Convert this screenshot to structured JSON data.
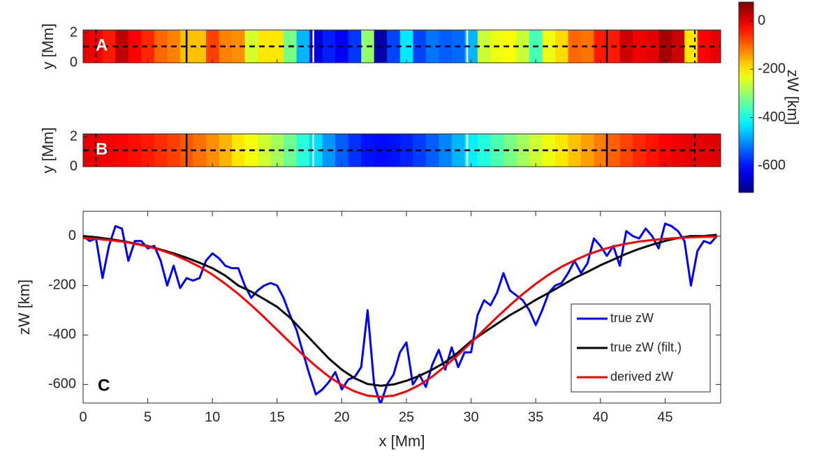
{
  "chart_data": [
    {
      "type": "heatmap",
      "label": "A",
      "ylabel": "y [Mm]",
      "ylim": [
        0,
        2.2
      ],
      "yticks": [
        0,
        2
      ],
      "x": [
        0,
        1,
        2,
        3,
        4,
        5,
        6,
        7,
        8,
        9,
        10,
        11,
        12,
        13,
        14,
        15,
        16,
        17,
        18,
        19,
        20,
        21,
        22,
        23,
        24,
        25,
        26,
        27,
        28,
        29,
        30,
        31,
        32,
        33,
        34,
        35,
        36,
        37,
        38,
        39,
        40,
        41,
        42,
        43,
        44,
        45,
        46,
        47,
        48,
        49
      ],
      "values": [
        0,
        -10,
        -40,
        30,
        -20,
        -50,
        -100,
        -120,
        -170,
        -170,
        -70,
        -120,
        -130,
        -250,
        -200,
        -200,
        -320,
        -470,
        -640,
        -590,
        -620,
        -570,
        -300,
        -680,
        -560,
        -430,
        -560,
        -520,
        -540,
        -530,
        -470,
        -260,
        -230,
        -220,
        -260,
        -360,
        -230,
        -190,
        -100,
        -110,
        -40,
        -40,
        20,
        -10,
        0,
        50,
        20,
        -200,
        -20,
        0
      ],
      "contours_black": [
        8,
        40.5
      ],
      "contours_white": [
        17.8,
        29.7
      ],
      "vlines": [
        1,
        47.3
      ],
      "hline": 1.1
    },
    {
      "type": "heatmap",
      "label": "B",
      "ylabel": "y [Mm]",
      "ylim": [
        0,
        2.2
      ],
      "yticks": [
        0,
        2
      ],
      "x": [
        0,
        1,
        2,
        3,
        4,
        5,
        6,
        7,
        8,
        9,
        10,
        11,
        12,
        13,
        14,
        15,
        16,
        17,
        18,
        19,
        20,
        21,
        22,
        23,
        24,
        25,
        26,
        27,
        28,
        29,
        30,
        31,
        32,
        33,
        34,
        35,
        36,
        37,
        38,
        39,
        40,
        41,
        42,
        43,
        44,
        45,
        46,
        47,
        48,
        49
      ],
      "values": [
        0,
        -5,
        -12,
        -20,
        -30,
        -40,
        -55,
        -70,
        -88,
        -108,
        -130,
        -160,
        -200,
        -225,
        -255,
        -286,
        -330,
        -385,
        -440,
        -495,
        -540,
        -575,
        -598,
        -605,
        -600,
        -585,
        -565,
        -540,
        -510,
        -470,
        -425,
        -390,
        -355,
        -320,
        -290,
        -258,
        -230,
        -200,
        -170,
        -145,
        -118,
        -95,
        -72,
        -52,
        -35,
        -20,
        -8,
        0,
        0,
        5
      ],
      "contours_black": [
        8,
        40.5
      ],
      "contours_white": [
        17.8,
        29.7
      ],
      "vlines": [
        1,
        47.3
      ],
      "hline": 1.1
    },
    {
      "type": "line",
      "label": "C",
      "xlabel": "x [Mm]",
      "ylabel": "zW [km]",
      "xlim": [
        0,
        49.3
      ],
      "ylim": [
        -675,
        100
      ],
      "xticks": [
        0,
        5,
        10,
        15,
        20,
        25,
        30,
        35,
        40,
        45
      ],
      "yticks": [
        0,
        -200,
        -400,
        -600
      ],
      "legend": "lower right",
      "series": [
        {
          "name": "true zW",
          "color": "#0000ff",
          "x": [
            0,
            0.5,
            1,
            1.5,
            2,
            2.5,
            3,
            3.5,
            4,
            4.5,
            5,
            5.5,
            6,
            6.5,
            7,
            7.5,
            8,
            8.5,
            9,
            9.5,
            10,
            10.5,
            11,
            11.5,
            12,
            12.5,
            13,
            13.5,
            14,
            14.5,
            15,
            15.5,
            16,
            16.5,
            17,
            17.5,
            18,
            18.5,
            19,
            19.5,
            20,
            20.5,
            21,
            21.5,
            22,
            22.5,
            23,
            23.5,
            24,
            24.5,
            25,
            25.5,
            26,
            26.5,
            27,
            27.5,
            28,
            28.5,
            29,
            29.5,
            30,
            30.5,
            31,
            31.5,
            32,
            32.5,
            33,
            33.5,
            34,
            34.5,
            35,
            35.5,
            36,
            36.5,
            37,
            37.5,
            38,
            38.5,
            39,
            39.5,
            40,
            40.5,
            41,
            41.5,
            42,
            42.5,
            43,
            43.5,
            44,
            44.5,
            45,
            45.5,
            46,
            46.5,
            47,
            47.5,
            48,
            48.5,
            49
          ],
          "values": [
            0,
            -20,
            -10,
            -170,
            -40,
            40,
            30,
            -100,
            -20,
            -20,
            -50,
            -40,
            -100,
            -200,
            -120,
            -210,
            -170,
            -180,
            -170,
            -100,
            -70,
            -90,
            -120,
            -130,
            -130,
            -200,
            -250,
            -220,
            -200,
            -190,
            -200,
            -250,
            -320,
            -380,
            -470,
            -560,
            -640,
            -620,
            -590,
            -550,
            -620,
            -580,
            -570,
            -530,
            -300,
            -600,
            -680,
            -600,
            -560,
            -470,
            -430,
            -600,
            -560,
            -610,
            -520,
            -460,
            -540,
            -450,
            -530,
            -470,
            -470,
            -320,
            -260,
            -280,
            -230,
            -150,
            -220,
            -240,
            -260,
            -300,
            -360,
            -300,
            -230,
            -200,
            -190,
            -150,
            -100,
            -150,
            -110,
            -10,
            -40,
            -80,
            -40,
            -120,
            20,
            0,
            -10,
            30,
            0,
            -50,
            50,
            40,
            20,
            -20,
            -200,
            -60,
            -20,
            -30,
            0
          ]
        },
        {
          "name": "true zW (filt.)",
          "color": "#000000",
          "x": [
            0,
            1,
            2,
            3,
            4,
            5,
            6,
            7,
            8,
            9,
            10,
            11,
            12,
            13,
            14,
            15,
            16,
            17,
            18,
            19,
            20,
            21,
            22,
            23,
            24,
            25,
            26,
            27,
            28,
            29,
            30,
            31,
            32,
            33,
            34,
            35,
            36,
            37,
            38,
            39,
            40,
            41,
            42,
            43,
            44,
            45,
            46,
            47,
            48,
            49
          ],
          "values": [
            0,
            -5,
            -12,
            -20,
            -30,
            -40,
            -55,
            -70,
            -88,
            -108,
            -130,
            -160,
            -200,
            -225,
            -255,
            -286,
            -330,
            -385,
            -440,
            -495,
            -540,
            -575,
            -598,
            -605,
            -600,
            -585,
            -565,
            -540,
            -510,
            -470,
            -425,
            -390,
            -355,
            -320,
            -290,
            -258,
            -230,
            -200,
            -170,
            -145,
            -118,
            -95,
            -72,
            -52,
            -35,
            -20,
            -8,
            0,
            0,
            5
          ]
        },
        {
          "name": "derived zW",
          "color": "#ff0000",
          "x": [
            0,
            1,
            2,
            3,
            4,
            5,
            6,
            7,
            8,
            9,
            10,
            11,
            12,
            13,
            14,
            15,
            16,
            17,
            18,
            19,
            20,
            21,
            22,
            23,
            24,
            25,
            26,
            27,
            28,
            29,
            30,
            31,
            32,
            33,
            34,
            35,
            36,
            37,
            38,
            39,
            40,
            41,
            42,
            43,
            44,
            45,
            46,
            47,
            48,
            49
          ],
          "values": [
            -8,
            -11,
            -16,
            -22,
            -31,
            -42,
            -57,
            -75,
            -98,
            -124,
            -156,
            -193,
            -234,
            -280,
            -328,
            -379,
            -430,
            -480,
            -526,
            -568,
            -602,
            -628,
            -645,
            -650,
            -645,
            -628,
            -602,
            -568,
            -526,
            -480,
            -430,
            -379,
            -328,
            -280,
            -234,
            -193,
            -156,
            -124,
            -98,
            -75,
            -57,
            -42,
            -31,
            -22,
            -16,
            -11,
            -8,
            -5,
            -3,
            -2
          ]
        }
      ]
    },
    {
      "type": "colorbar",
      "label": "zW [km]",
      "colormap": "jet",
      "clim": [
        -710,
        78
      ],
      "ticks": [
        0,
        -200,
        -400,
        -600
      ]
    }
  ]
}
